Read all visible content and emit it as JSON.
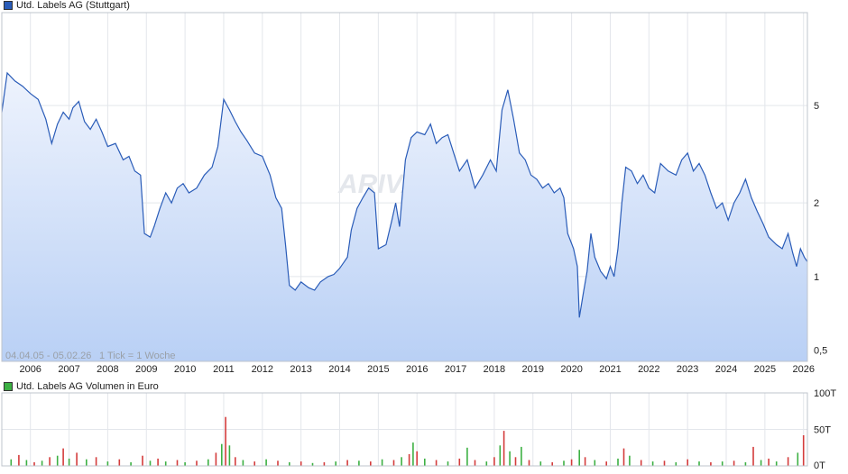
{
  "chart_data": [
    {
      "type": "line",
      "title": "Utd. Labels AG (Stuttgart)",
      "series_color": "#2a5cb8",
      "y_scale": "log",
      "ylim": [
        0.45,
        12
      ],
      "y_ticks": [
        {
          "value": 5,
          "label": "5"
        },
        {
          "value": 2,
          "label": "2"
        },
        {
          "value": 1,
          "label": "1"
        },
        {
          "value": 0.5,
          "label": "0,5"
        }
      ],
      "x_ticks": [
        "2006",
        "2007",
        "2008",
        "2009",
        "2010",
        "2011",
        "2012",
        "2013",
        "2014",
        "2015",
        "2016",
        "2017",
        "2018",
        "2019",
        "2020",
        "2021",
        "2022",
        "2023",
        "2024",
        "2025",
        "2026"
      ],
      "xlim": [
        2005.26,
        2026.1
      ],
      "date_range_label": "04.04.05 - 05.02.26",
      "tick_label": "1 Tick = 1 Woche",
      "grid": true,
      "points": [
        [
          2005.26,
          4.7
        ],
        [
          2005.4,
          6.8
        ],
        [
          2005.6,
          6.3
        ],
        [
          2005.8,
          6.0
        ],
        [
          2006.0,
          5.6
        ],
        [
          2006.2,
          5.3
        ],
        [
          2006.4,
          4.4
        ],
        [
          2006.55,
          3.5
        ],
        [
          2006.7,
          4.2
        ],
        [
          2006.85,
          4.7
        ],
        [
          2007.0,
          4.4
        ],
        [
          2007.1,
          4.9
        ],
        [
          2007.25,
          5.2
        ],
        [
          2007.4,
          4.3
        ],
        [
          2007.55,
          4.0
        ],
        [
          2007.7,
          4.4
        ],
        [
          2007.85,
          3.9
        ],
        [
          2008.0,
          3.4
        ],
        [
          2008.2,
          3.5
        ],
        [
          2008.4,
          3.0
        ],
        [
          2008.55,
          3.1
        ],
        [
          2008.7,
          2.7
        ],
        [
          2008.85,
          2.6
        ],
        [
          2008.95,
          1.5
        ],
        [
          2009.1,
          1.45
        ],
        [
          2009.2,
          1.6
        ],
        [
          2009.35,
          1.9
        ],
        [
          2009.5,
          2.2
        ],
        [
          2009.65,
          2.0
        ],
        [
          2009.8,
          2.3
        ],
        [
          2009.95,
          2.4
        ],
        [
          2010.1,
          2.2
        ],
        [
          2010.3,
          2.3
        ],
        [
          2010.5,
          2.6
        ],
        [
          2010.7,
          2.8
        ],
        [
          2010.85,
          3.4
        ],
        [
          2011.0,
          5.3
        ],
        [
          2011.15,
          4.8
        ],
        [
          2011.3,
          4.3
        ],
        [
          2011.45,
          3.9
        ],
        [
          2011.6,
          3.6
        ],
        [
          2011.8,
          3.2
        ],
        [
          2012.0,
          3.1
        ],
        [
          2012.2,
          2.6
        ],
        [
          2012.35,
          2.1
        ],
        [
          2012.5,
          1.9
        ],
        [
          2012.6,
          1.35
        ],
        [
          2012.7,
          0.92
        ],
        [
          2012.85,
          0.88
        ],
        [
          2013.0,
          0.95
        ],
        [
          2013.2,
          0.9
        ],
        [
          2013.35,
          0.88
        ],
        [
          2013.5,
          0.95
        ],
        [
          2013.7,
          1.0
        ],
        [
          2013.85,
          1.02
        ],
        [
          2014.0,
          1.08
        ],
        [
          2014.2,
          1.2
        ],
        [
          2014.3,
          1.55
        ],
        [
          2014.45,
          1.9
        ],
        [
          2014.6,
          2.1
        ],
        [
          2014.75,
          2.3
        ],
        [
          2014.9,
          2.2
        ],
        [
          2015.0,
          1.3
        ],
        [
          2015.2,
          1.35
        ],
        [
          2015.35,
          1.7
        ],
        [
          2015.45,
          2.0
        ],
        [
          2015.55,
          1.6
        ],
        [
          2015.7,
          3.0
        ],
        [
          2015.85,
          3.7
        ],
        [
          2016.0,
          3.9
        ],
        [
          2016.2,
          3.8
        ],
        [
          2016.35,
          4.2
        ],
        [
          2016.5,
          3.5
        ],
        [
          2016.65,
          3.7
        ],
        [
          2016.8,
          3.8
        ],
        [
          2016.95,
          3.2
        ],
        [
          2017.1,
          2.7
        ],
        [
          2017.3,
          3.0
        ],
        [
          2017.5,
          2.3
        ],
        [
          2017.7,
          2.6
        ],
        [
          2017.9,
          3.0
        ],
        [
          2018.05,
          2.7
        ],
        [
          2018.2,
          4.8
        ],
        [
          2018.35,
          5.8
        ],
        [
          2018.5,
          4.4
        ],
        [
          2018.65,
          3.2
        ],
        [
          2018.8,
          3.0
        ],
        [
          2018.95,
          2.6
        ],
        [
          2019.1,
          2.5
        ],
        [
          2019.25,
          2.3
        ],
        [
          2019.4,
          2.4
        ],
        [
          2019.55,
          2.2
        ],
        [
          2019.7,
          2.3
        ],
        [
          2019.8,
          2.1
        ],
        [
          2019.9,
          1.5
        ],
        [
          2020.05,
          1.3
        ],
        [
          2020.15,
          1.1
        ],
        [
          2020.2,
          0.68
        ],
        [
          2020.3,
          0.85
        ],
        [
          2020.4,
          1.05
        ],
        [
          2020.5,
          1.5
        ],
        [
          2020.6,
          1.2
        ],
        [
          2020.75,
          1.05
        ],
        [
          2020.9,
          0.98
        ],
        [
          2021.0,
          1.1
        ],
        [
          2021.1,
          1.0
        ],
        [
          2021.2,
          1.3
        ],
        [
          2021.3,
          2.0
        ],
        [
          2021.4,
          2.8
        ],
        [
          2021.55,
          2.7
        ],
        [
          2021.7,
          2.4
        ],
        [
          2021.85,
          2.6
        ],
        [
          2022.0,
          2.3
        ],
        [
          2022.15,
          2.2
        ],
        [
          2022.3,
          2.9
        ],
        [
          2022.5,
          2.7
        ],
        [
          2022.7,
          2.6
        ],
        [
          2022.85,
          3.0
        ],
        [
          2023.0,
          3.2
        ],
        [
          2023.15,
          2.7
        ],
        [
          2023.3,
          2.9
        ],
        [
          2023.45,
          2.6
        ],
        [
          2023.6,
          2.2
        ],
        [
          2023.75,
          1.9
        ],
        [
          2023.9,
          2.0
        ],
        [
          2024.05,
          1.7
        ],
        [
          2024.2,
          2.0
        ],
        [
          2024.35,
          2.2
        ],
        [
          2024.5,
          2.5
        ],
        [
          2024.65,
          2.1
        ],
        [
          2024.8,
          1.85
        ],
        [
          2024.95,
          1.65
        ],
        [
          2025.1,
          1.45
        ],
        [
          2025.3,
          1.35
        ],
        [
          2025.45,
          1.3
        ],
        [
          2025.6,
          1.5
        ],
        [
          2025.72,
          1.25
        ],
        [
          2025.82,
          1.1
        ],
        [
          2025.92,
          1.3
        ],
        [
          2026.02,
          1.2
        ],
        [
          2026.1,
          1.15
        ]
      ]
    },
    {
      "type": "bar",
      "title": "Utd. Labels AG Volumen in Euro",
      "legend_color": "#3cb043",
      "up_color": "#3cb043",
      "down_color": "#d43c3c",
      "ylim": [
        0,
        100000
      ],
      "y_ticks": [
        {
          "value": 100000,
          "label": "100T"
        },
        {
          "value": 50000,
          "label": "50T"
        },
        {
          "value": 0,
          "label": "0T"
        }
      ],
      "bars": [
        [
          2005.5,
          9000
        ],
        [
          2005.7,
          15000
        ],
        [
          2005.9,
          8000
        ],
        [
          2006.1,
          5000
        ],
        [
          2006.3,
          7000
        ],
        [
          2006.5,
          12000
        ],
        [
          2006.7,
          14000
        ],
        [
          2006.85,
          24000
        ],
        [
          2007.0,
          10000
        ],
        [
          2007.2,
          18000
        ],
        [
          2007.45,
          9000
        ],
        [
          2007.7,
          12000
        ],
        [
          2008.0,
          6000
        ],
        [
          2008.3,
          9000
        ],
        [
          2008.6,
          5000
        ],
        [
          2008.9,
          14000
        ],
        [
          2009.1,
          7000
        ],
        [
          2009.3,
          10000
        ],
        [
          2009.5,
          6000
        ],
        [
          2009.8,
          8000
        ],
        [
          2010.0,
          5000
        ],
        [
          2010.3,
          7000
        ],
        [
          2010.6,
          9000
        ],
        [
          2010.8,
          18000
        ],
        [
          2010.95,
          30000
        ],
        [
          2011.05,
          67000
        ],
        [
          2011.15,
          28000
        ],
        [
          2011.3,
          12000
        ],
        [
          2011.5,
          8000
        ],
        [
          2011.8,
          6000
        ],
        [
          2012.1,
          9000
        ],
        [
          2012.4,
          7000
        ],
        [
          2012.7,
          5000
        ],
        [
          2013.0,
          6000
        ],
        [
          2013.3,
          4000
        ],
        [
          2013.6,
          5000
        ],
        [
          2013.9,
          6000
        ],
        [
          2014.2,
          8000
        ],
        [
          2014.5,
          7000
        ],
        [
          2014.8,
          6000
        ],
        [
          2015.1,
          9000
        ],
        [
          2015.4,
          8000
        ],
        [
          2015.6,
          12000
        ],
        [
          2015.8,
          16000
        ],
        [
          2015.9,
          32000
        ],
        [
          2016.0,
          20000
        ],
        [
          2016.2,
          10000
        ],
        [
          2016.5,
          8000
        ],
        [
          2016.8,
          6000
        ],
        [
          2017.1,
          10000
        ],
        [
          2017.3,
          25000
        ],
        [
          2017.5,
          8000
        ],
        [
          2017.8,
          6000
        ],
        [
          2018.0,
          12000
        ],
        [
          2018.15,
          28000
        ],
        [
          2018.25,
          48000
        ],
        [
          2018.4,
          20000
        ],
        [
          2018.55,
          12000
        ],
        [
          2018.7,
          26000
        ],
        [
          2018.9,
          8000
        ],
        [
          2019.2,
          6000
        ],
        [
          2019.5,
          5000
        ],
        [
          2019.8,
          7000
        ],
        [
          2020.0,
          9000
        ],
        [
          2020.2,
          22000
        ],
        [
          2020.35,
          12000
        ],
        [
          2020.6,
          8000
        ],
        [
          2020.9,
          6000
        ],
        [
          2021.2,
          10000
        ],
        [
          2021.35,
          24000
        ],
        [
          2021.5,
          14000
        ],
        [
          2021.8,
          8000
        ],
        [
          2022.1,
          6000
        ],
        [
          2022.4,
          7000
        ],
        [
          2022.7,
          5000
        ],
        [
          2023.0,
          9000
        ],
        [
          2023.3,
          6000
        ],
        [
          2023.6,
          5000
        ],
        [
          2023.9,
          6000
        ],
        [
          2024.2,
          7000
        ],
        [
          2024.5,
          5000
        ],
        [
          2024.7,
          26000
        ],
        [
          2024.9,
          8000
        ],
        [
          2025.1,
          10000
        ],
        [
          2025.3,
          6000
        ],
        [
          2025.6,
          12000
        ],
        [
          2025.85,
          18000
        ],
        [
          2026.0,
          42000
        ]
      ]
    }
  ],
  "watermark": "ARIVA.DE"
}
